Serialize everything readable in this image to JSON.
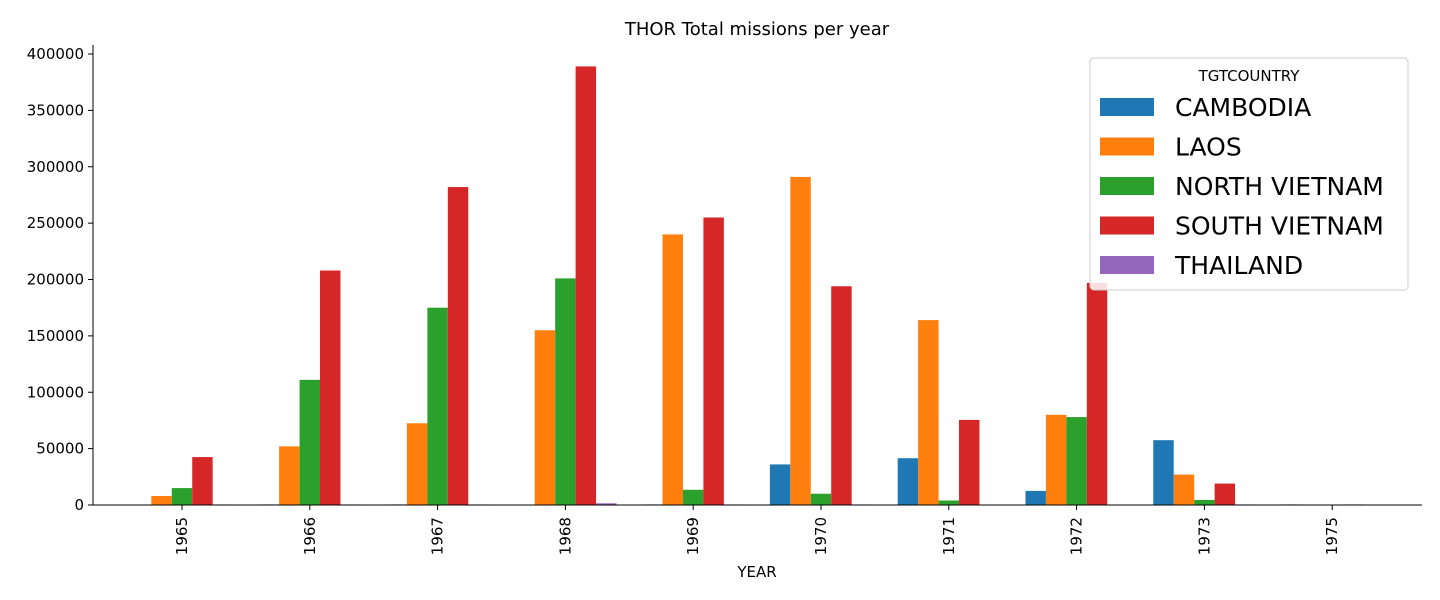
{
  "chart_data": {
    "type": "bar",
    "title": "THOR Total missions per year",
    "xlabel": "YEAR",
    "ylabel": "",
    "ylim": [
      0,
      408000
    ],
    "yticks": [
      0,
      50000,
      100000,
      150000,
      200000,
      250000,
      300000,
      350000,
      400000
    ],
    "grid": false,
    "legend": {
      "title": "TGTCOUNTRY",
      "placement": "top-right"
    },
    "categories": [
      "1965",
      "1966",
      "1967",
      "1968",
      "1969",
      "1970",
      "1971",
      "1972",
      "1973",
      "1975"
    ],
    "series": [
      {
        "name": "CAMBODIA",
        "color": "#1f77b4",
        "values": [
          0,
          500,
          500,
          0,
          500,
          36000,
          41500,
          12500,
          57500,
          500
        ]
      },
      {
        "name": "LAOS",
        "color": "#ff7f0e",
        "values": [
          8000,
          52000,
          72500,
          155000,
          240000,
          291000,
          164000,
          80000,
          27000,
          0
        ]
      },
      {
        "name": "NORTH VIETNAM",
        "color": "#2ca02c",
        "values": [
          15000,
          111000,
          175000,
          201000,
          13500,
          10000,
          4000,
          78000,
          4500,
          0
        ]
      },
      {
        "name": "SOUTH VIETNAM",
        "color": "#d62728",
        "values": [
          42500,
          208000,
          282000,
          389000,
          255000,
          194000,
          75500,
          197000,
          19000,
          500
        ]
      },
      {
        "name": "THAILAND",
        "color": "#9467bd",
        "values": [
          500,
          500,
          500,
          1500,
          500,
          500,
          0,
          0,
          500,
          0
        ]
      }
    ]
  }
}
